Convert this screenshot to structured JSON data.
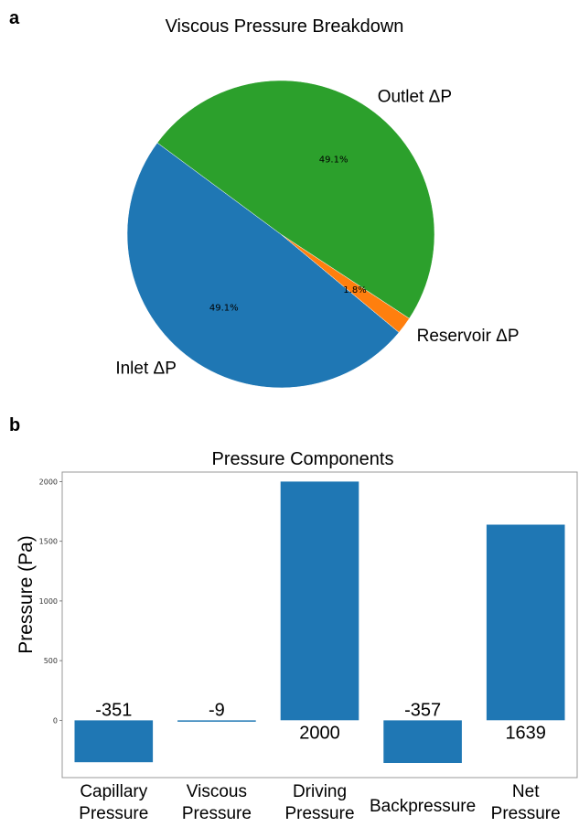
{
  "panels": {
    "a": "a",
    "b": "b"
  },
  "chart_data": [
    {
      "type": "pie",
      "title": "Viscous Pressure Breakdown",
      "slices": [
        {
          "label": "Inlet ΔP",
          "value": 49.1,
          "pct_label": "49.1%",
          "color": "#1f77b4"
        },
        {
          "label": "Reservoir ΔP",
          "value": 1.8,
          "pct_label": "1.8%",
          "color": "#ff7f0e"
        },
        {
          "label": "Outlet ΔP",
          "value": 49.1,
          "pct_label": "49.1%",
          "color": "#2ca02c"
        }
      ]
    },
    {
      "type": "bar",
      "title": "Pressure Components",
      "ylabel": "Pressure (Pa)",
      "categories": [
        [
          "Capillary",
          "Pressure"
        ],
        [
          "Viscous",
          "Pressure"
        ],
        [
          "Driving",
          "Pressure"
        ],
        [
          "Backpressure"
        ],
        [
          "Net",
          "Pressure"
        ]
      ],
      "values": [
        -351,
        -9,
        2000,
        -357,
        1639
      ],
      "value_labels": [
        "-351",
        "-9",
        "2000",
        "-357",
        "1639"
      ],
      "yticks": [
        0,
        500,
        1000,
        1500,
        2000
      ],
      "ylim": [
        -480,
        2080
      ],
      "color": "#1f77b4",
      "grid": false
    }
  ]
}
